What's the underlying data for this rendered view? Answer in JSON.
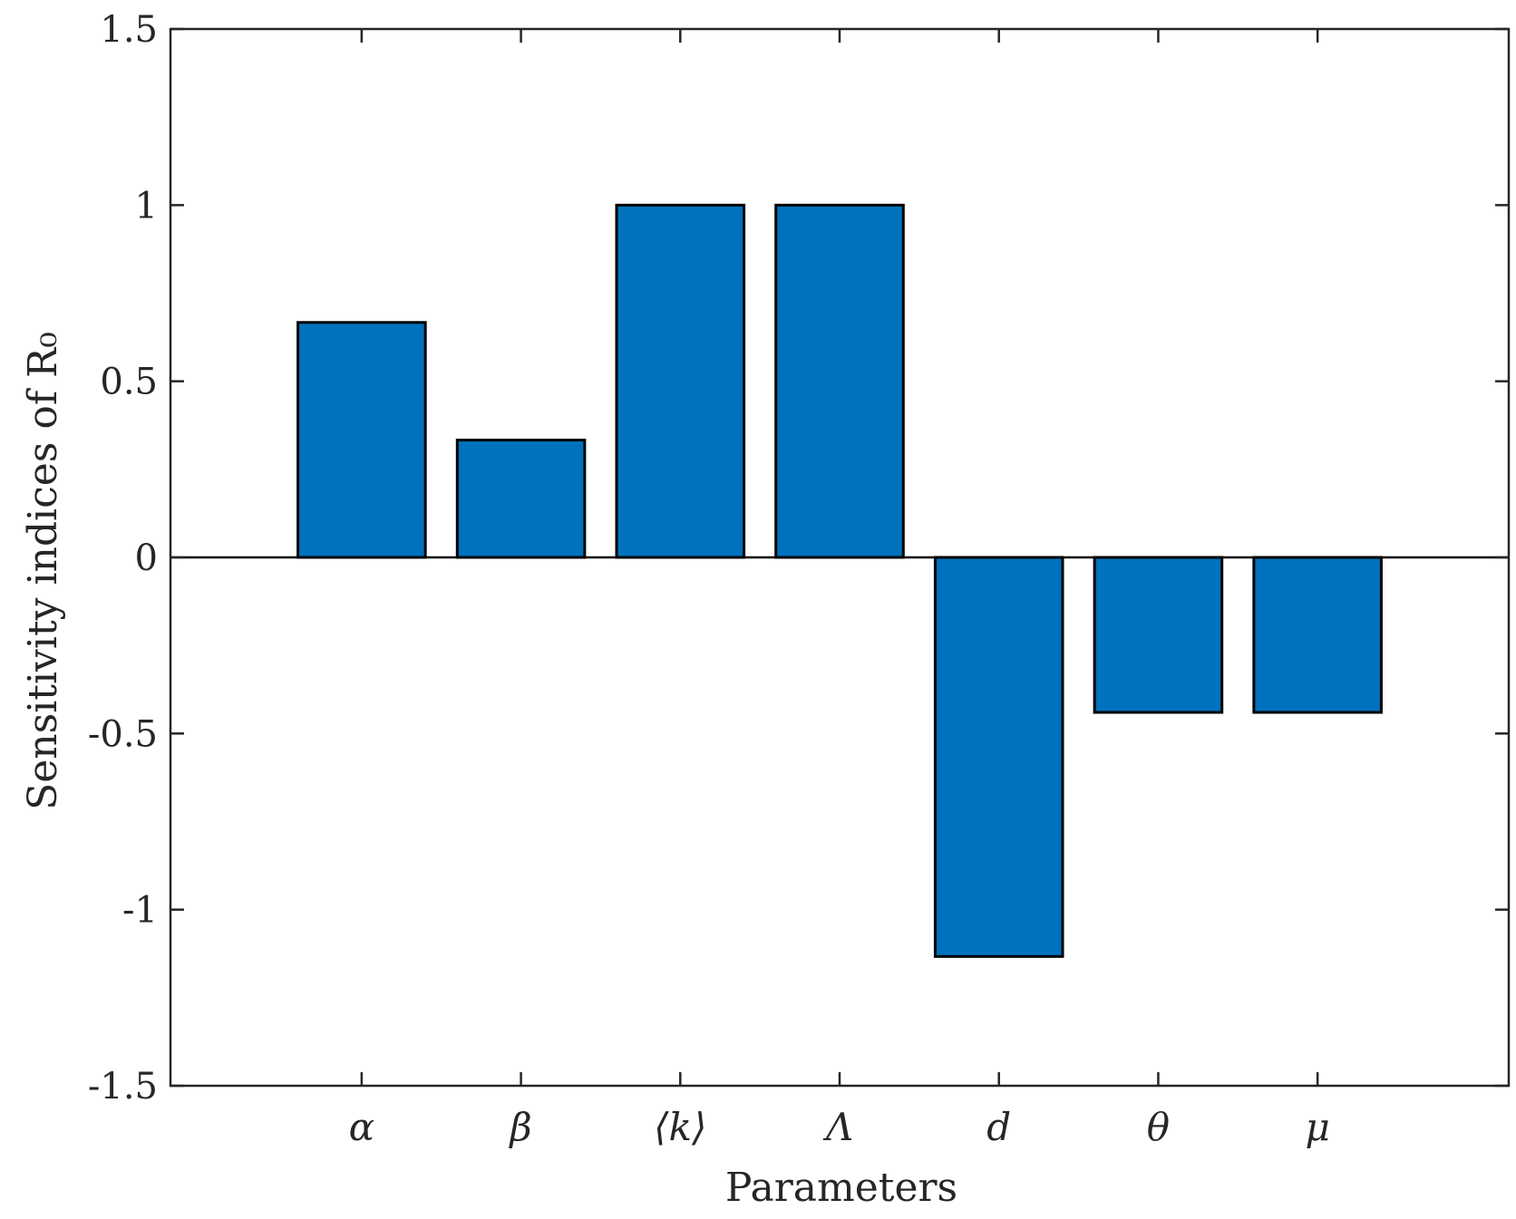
{
  "chart_data": {
    "type": "bar",
    "categories": [
      "α",
      "β",
      "⟨k⟩",
      "Λ",
      "d",
      "θ",
      "μ"
    ],
    "values": [
      0.667,
      0.333,
      1.0,
      1.0,
      -1.133,
      -0.44,
      -0.44
    ],
    "title": "",
    "xlabel": "Parameters",
    "ylabel": "Sensitivity indices of R₀",
    "ylim": [
      -1.5,
      1.5
    ],
    "yticks": [
      1.5,
      1,
      0.5,
      0,
      -0.5,
      -1,
      -1.5
    ],
    "ytick_labels": [
      "1.5",
      "1",
      "0.5",
      "0",
      "-0.5",
      "-1",
      "-1.5"
    ],
    "grid": false,
    "colors": {
      "bar": "#0072bd",
      "edge": "#000000"
    }
  }
}
